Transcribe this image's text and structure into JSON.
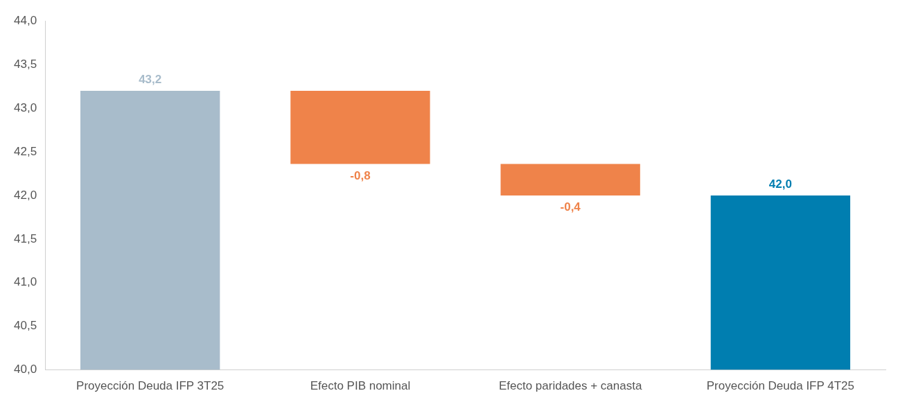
{
  "chart_data": {
    "type": "bar",
    "categories": [
      "Proyección Deuda IFP 3T25",
      "Efecto PIB nominal",
      "Efecto paridades + canasta",
      "Proyección Deuda IFP 4T25"
    ],
    "values": [
      3.2,
      -0.84,
      -0.36,
      2.0
    ],
    "base": [
      40,
      43.2,
      42.36,
      40
    ],
    "colors": [
      "#a8bccb",
      "#ef834a",
      "#ef834a",
      "#007eb0"
    ],
    "value_labels": [
      "43,2",
      "-0,8",
      "-0,4",
      "42,0"
    ],
    "ylim": [
      40,
      44
    ],
    "yticks": [
      {
        "value": 40,
        "label": "40,0"
      },
      {
        "value": 40.5,
        "label": "40,5"
      },
      {
        "value": 41,
        "label": "41,0"
      },
      {
        "value": 41.5,
        "label": "41,5"
      },
      {
        "value": 42,
        "label": "42,0"
      },
      {
        "value": 42.5,
        "label": "42,5"
      },
      {
        "value": 43,
        "label": "43,0"
      },
      {
        "value": 43.5,
        "label": "43,5"
      },
      {
        "value": 44,
        "label": "44,0"
      }
    ],
    "grid": false,
    "legend": false
  }
}
